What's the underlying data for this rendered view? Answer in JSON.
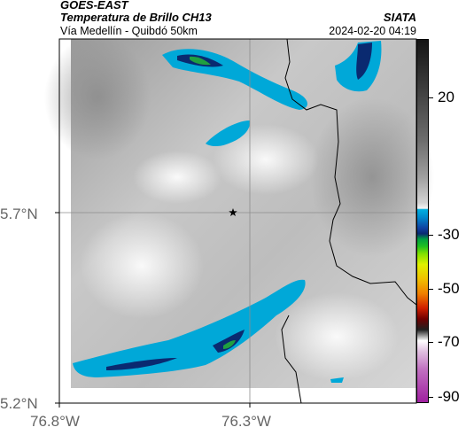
{
  "header": {
    "satellite": "GOES-EAST",
    "product": "Temperatura de Brillo CH13",
    "route": "Vía Medellín - Quibdó 50km",
    "org": "SIATA",
    "timestamp": "2024-02-20 04:19"
  },
  "axes": {
    "lat_labels": [
      "5.7°N",
      "5.2°N"
    ],
    "lon_labels": [
      "76.8°W",
      "76.3°W"
    ]
  },
  "colorbar": {
    "labels": [
      "20",
      "-30",
      "-50",
      "-70",
      "-90"
    ],
    "values": [
      20,
      -30,
      -50,
      -70,
      -90
    ]
  },
  "marker": {
    "icon": "star-icon"
  },
  "colors": {
    "cloud_cold": "#00a8d8",
    "cloud_very_cold": "#0a2a70",
    "cloud_core": "#20a040",
    "border": "#000000",
    "grid": "#999999"
  }
}
